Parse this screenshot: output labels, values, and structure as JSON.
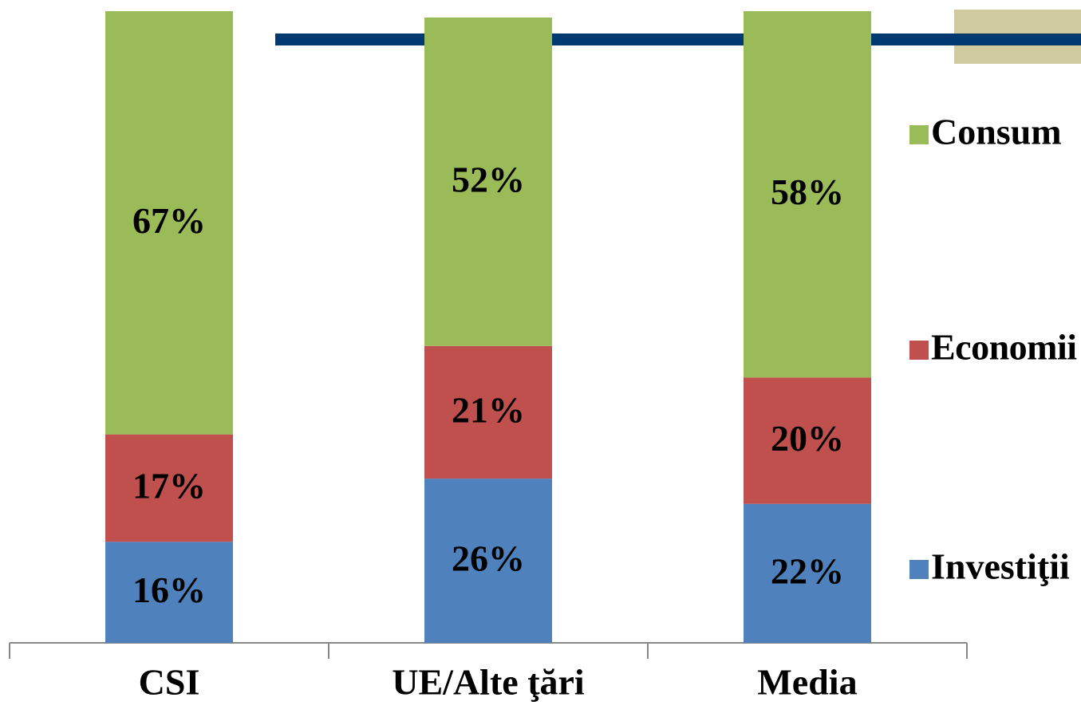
{
  "chart_data": {
    "type": "stacked-bar",
    "categories": [
      "CSI",
      "UE/Alte ţări",
      "Media"
    ],
    "series": [
      {
        "name": "Investiţii",
        "color": "#4f81bd",
        "values": [
          16,
          26,
          22
        ],
        "value_labels": [
          "16%",
          "26%",
          "22%"
        ]
      },
      {
        "name": "Economii",
        "color": "#c0504d",
        "values": [
          17,
          21,
          20
        ],
        "value_labels": [
          "17%",
          "21%",
          "20%"
        ]
      },
      {
        "name": "Consum",
        "color": "#9bbb59",
        "values": [
          67,
          52,
          58
        ],
        "value_labels": [
          "67%",
          "52%",
          "58%"
        ]
      }
    ],
    "ylim": [
      0,
      100
    ],
    "legend": "right"
  }
}
